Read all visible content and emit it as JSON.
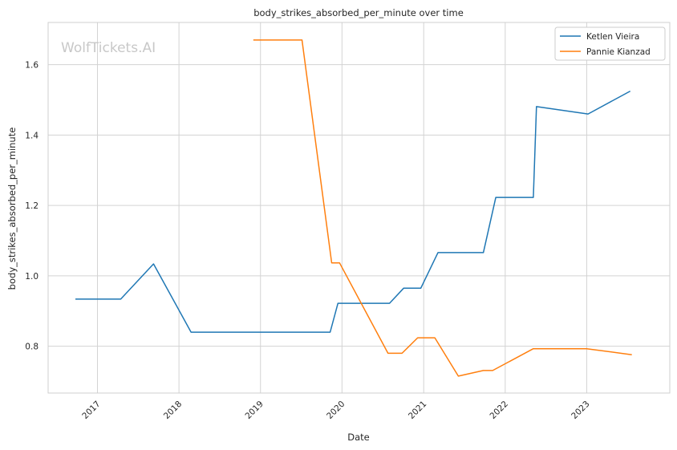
{
  "chart_data": {
    "type": "line",
    "title": "body_strikes_absorbed_per_minute over time",
    "xlabel": "Date",
    "ylabel": "body_strikes_absorbed_per_minute",
    "watermark": "WolfTickets.AI",
    "grid": true,
    "legend_position": "top-right",
    "x_ticks": [
      "2017",
      "2018",
      "2019",
      "2020",
      "2021",
      "2022",
      "2023"
    ],
    "y_ticks": [
      "0.8",
      "1.0",
      "1.2",
      "1.4",
      "1.6"
    ],
    "xlim": [
      "2016-05-25",
      "2024-01-08"
    ],
    "ylim": [
      0.667,
      1.72
    ],
    "series": [
      {
        "name": "Ketlen Vieira",
        "color": "#1f77b4",
        "points": [
          {
            "x": "2016-09-24",
            "y": 0.934
          },
          {
            "x": "2017-04-15",
            "y": 0.934
          },
          {
            "x": "2017-09-09",
            "y": 1.034
          },
          {
            "x": "2018-02-24",
            "y": 0.84
          },
          {
            "x": "2019-11-09",
            "y": 0.84
          },
          {
            "x": "2019-12-14",
            "y": 0.922
          },
          {
            "x": "2020-08-01",
            "y": 0.922
          },
          {
            "x": "2020-10-03",
            "y": 0.965
          },
          {
            "x": "2020-12-19",
            "y": 0.965
          },
          {
            "x": "2021-03-06",
            "y": 1.066
          },
          {
            "x": "2021-09-25",
            "y": 1.066
          },
          {
            "x": "2021-11-20",
            "y": 1.223
          },
          {
            "x": "2022-05-07",
            "y": 1.223
          },
          {
            "x": "2022-05-21",
            "y": 1.481
          },
          {
            "x": "2023-01-07",
            "y": 1.46
          },
          {
            "x": "2023-07-15",
            "y": 1.525
          }
        ]
      },
      {
        "name": "Pannie Kianzad",
        "color": "#ff7f0e",
        "points": [
          {
            "x": "2018-11-30",
            "y": 1.67
          },
          {
            "x": "2019-07-06",
            "y": 1.67
          },
          {
            "x": "2019-11-16",
            "y": 1.037
          },
          {
            "x": "2019-12-21",
            "y": 1.037
          },
          {
            "x": "2020-07-25",
            "y": 0.78
          },
          {
            "x": "2020-09-26",
            "y": 0.78
          },
          {
            "x": "2020-12-05",
            "y": 0.824
          },
          {
            "x": "2021-02-20",
            "y": 0.824
          },
          {
            "x": "2021-06-05",
            "y": 0.715
          },
          {
            "x": "2021-09-25",
            "y": 0.731
          },
          {
            "x": "2021-11-06",
            "y": 0.731
          },
          {
            "x": "2022-05-07",
            "y": 0.793
          },
          {
            "x": "2022-12-31",
            "y": 0.793
          },
          {
            "x": "2023-07-22",
            "y": 0.776
          }
        ]
      }
    ]
  }
}
